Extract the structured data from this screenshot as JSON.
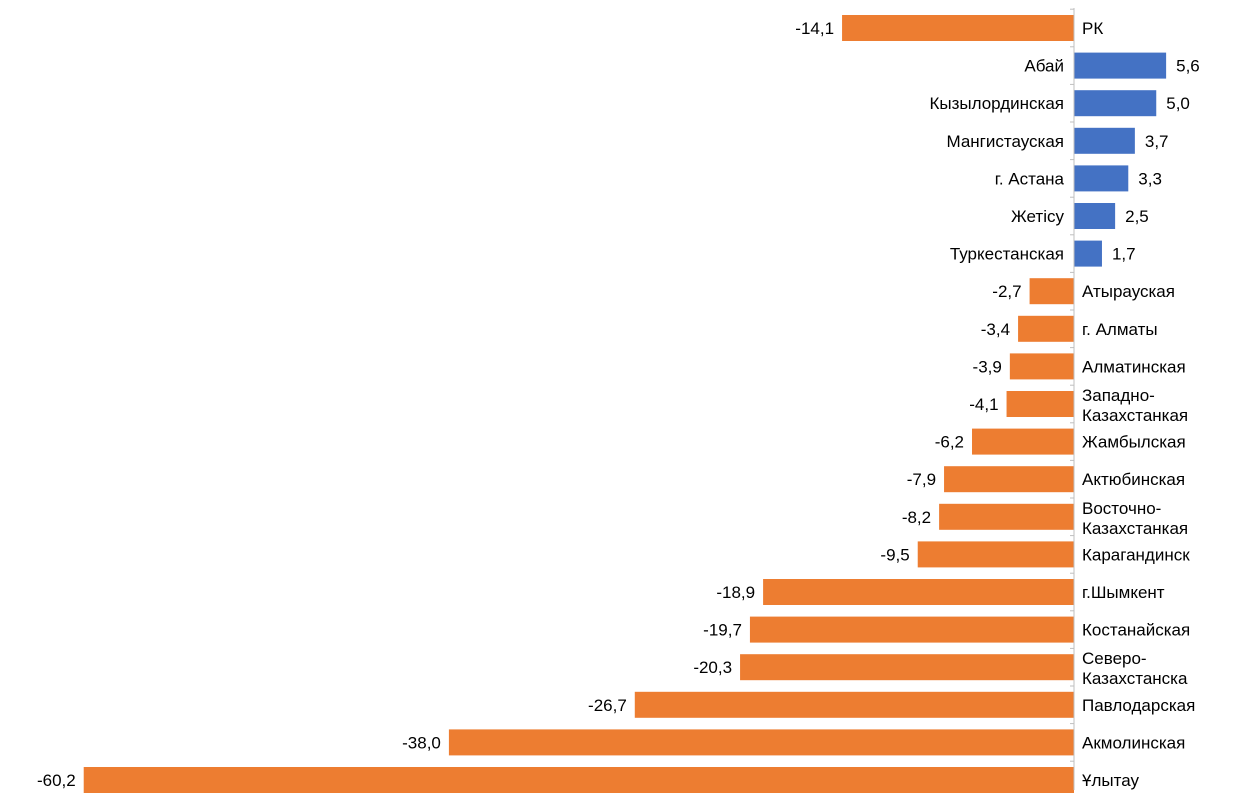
{
  "chart_data": {
    "type": "bar",
    "orientation": "horizontal",
    "title": "",
    "xlabel": "",
    "ylabel": "",
    "xlim": [
      -60.2,
      9.2
    ],
    "grid": false,
    "legend": "none",
    "colors": {
      "negative": "#ED7D31",
      "positive": "#4472C4"
    },
    "categories": [
      "РК",
      "Абай",
      "Кызылординская",
      "Мангистауская",
      "г. Астана",
      "Жетісу",
      "Туркестанская",
      "Атырауская",
      "г. Алматы",
      "Алматинская",
      "Западно-Казахстанкая",
      "Жамбылская",
      "Актюбинская",
      "Восточно-Казахстанкая",
      "Карагандинск",
      "г.Шымкент",
      "Костанайская",
      "Северо-Казахстанска",
      "Павлодарская",
      "Акмолинская",
      "Ұлытау"
    ],
    "values": [
      -14.1,
      5.6,
      5.0,
      3.7,
      3.3,
      2.5,
      1.7,
      -2.7,
      -3.4,
      -3.9,
      -4.1,
      -6.2,
      -7.9,
      -8.2,
      -9.5,
      -18.9,
      -19.7,
      -20.3,
      -26.7,
      -38.0,
      -60.2
    ],
    "value_labels": [
      "-14,1",
      "5,6",
      "5,0",
      "3,7",
      "3,3",
      "2,5",
      "1,7",
      "-2,7",
      "-3,4",
      "-3,9",
      "-4,1",
      "-6,2",
      "-7,9",
      "-8,2",
      "-9,5",
      "-18,9",
      "-19,7",
      "-20,3",
      "-26,7",
      "-38,0",
      "-60,2"
    ]
  }
}
